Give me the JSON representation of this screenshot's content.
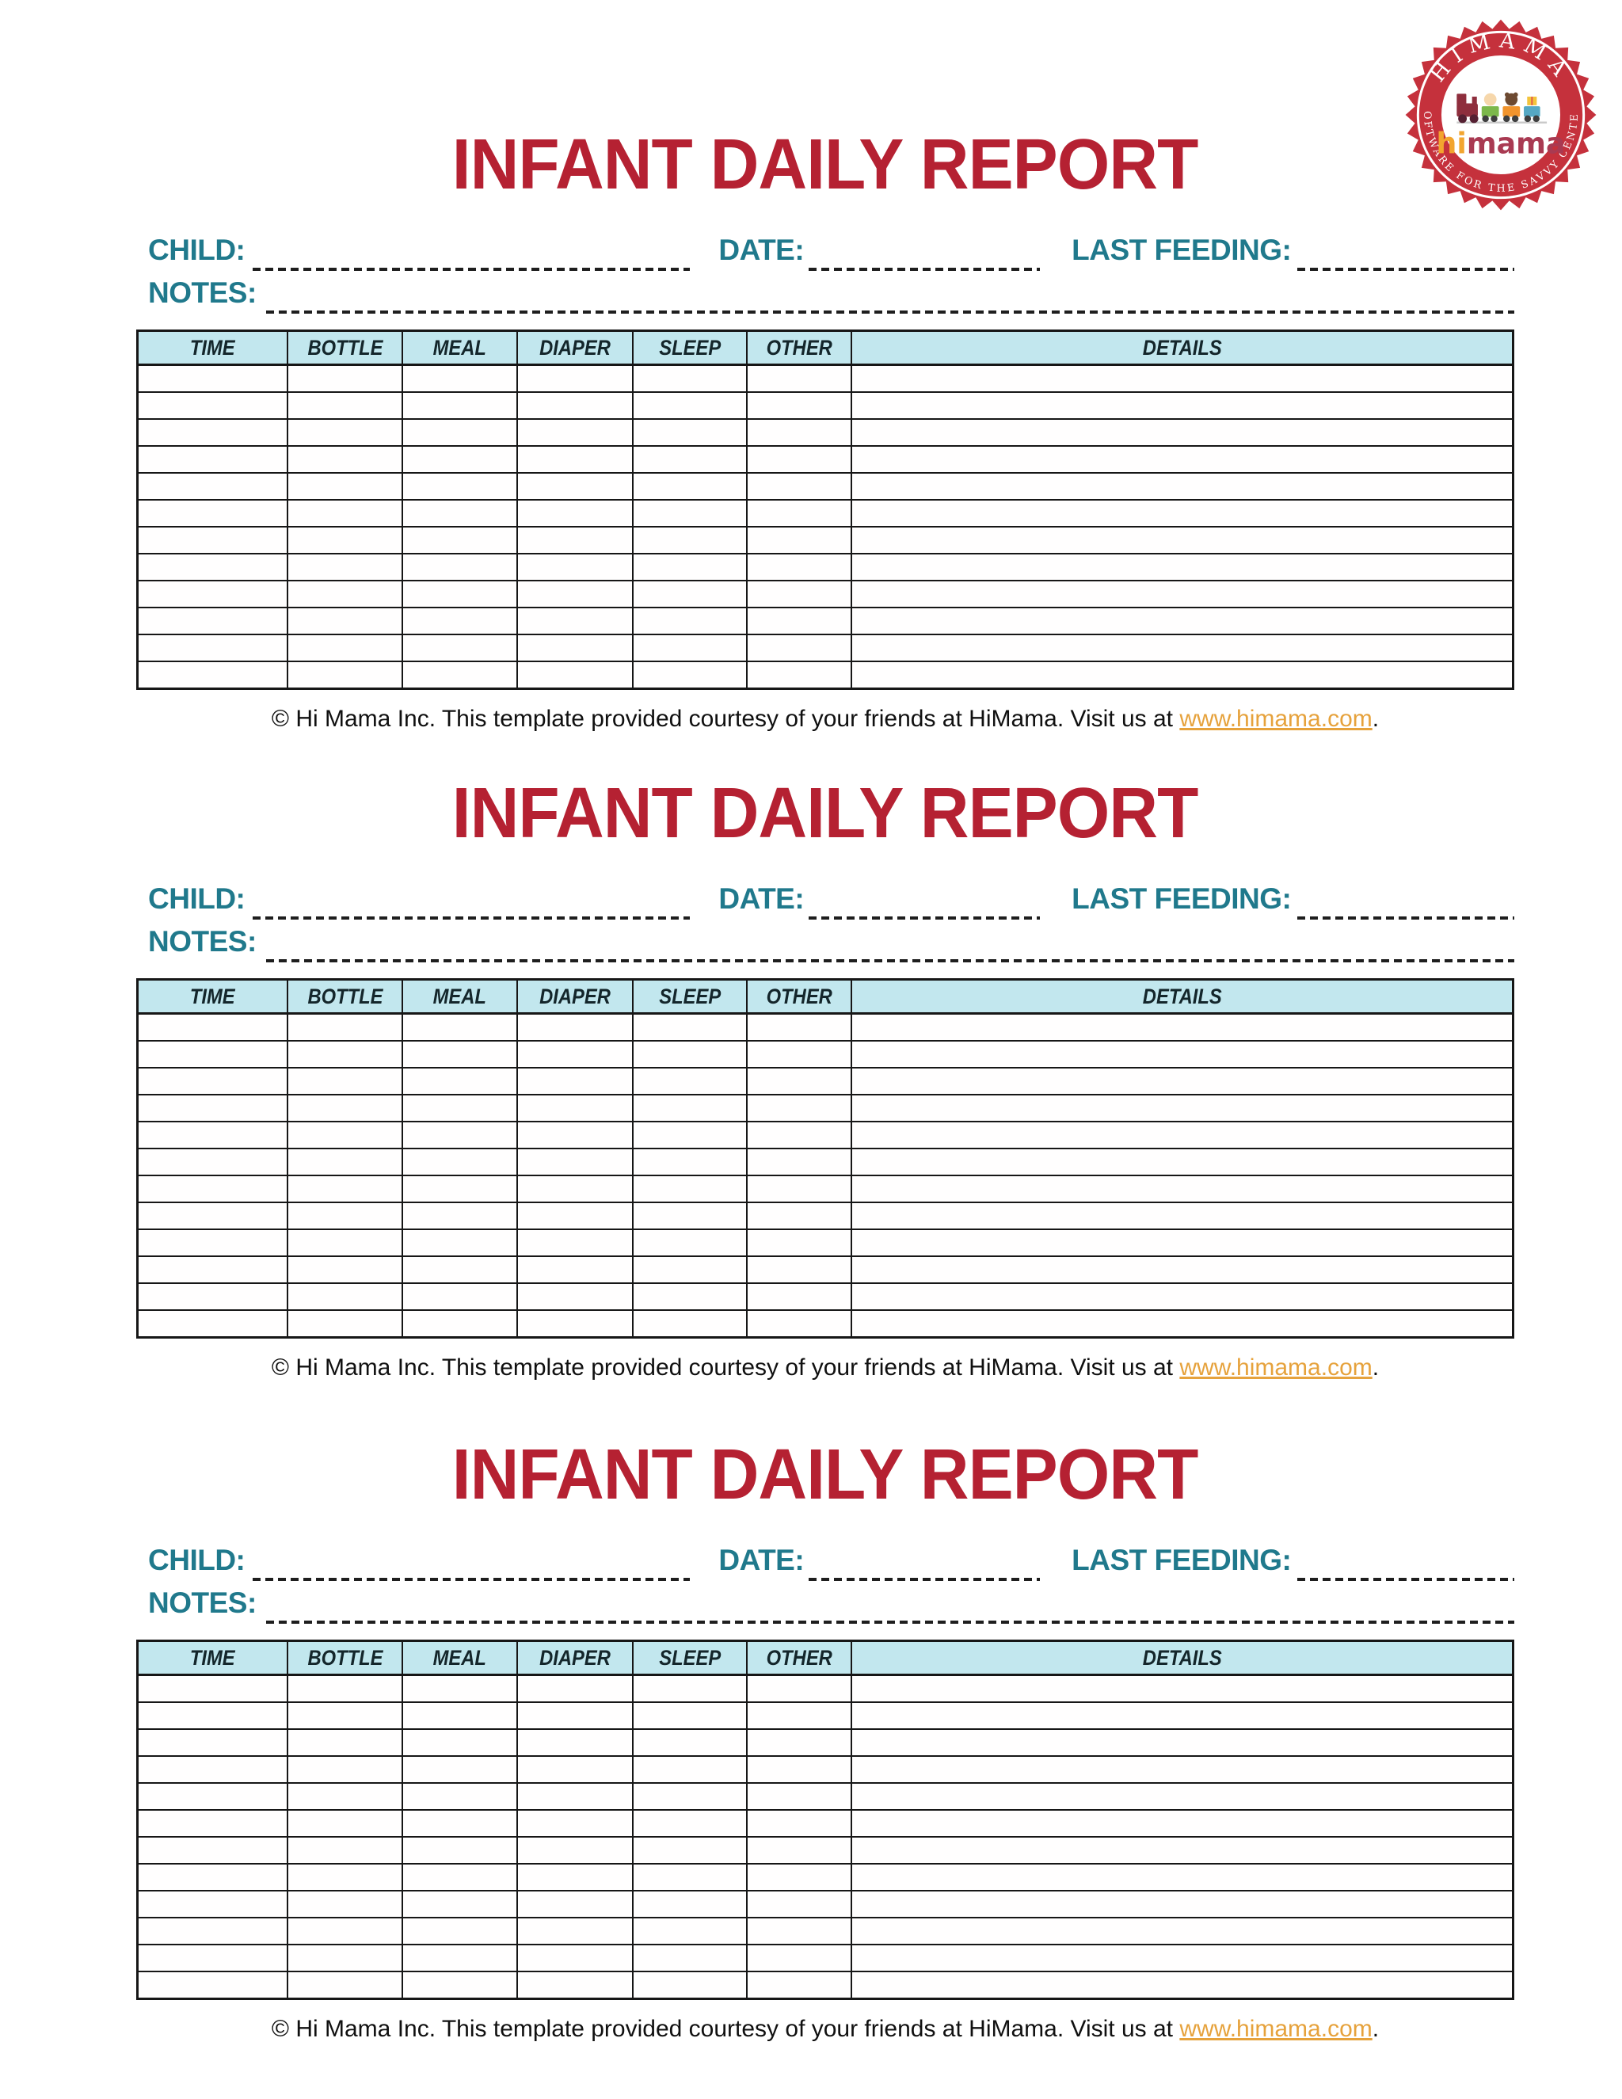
{
  "colors": {
    "title_red": "#b52132",
    "label_teal": "#20798c",
    "header_bg": "#c2e7ee",
    "link_orange": "#e6a23c",
    "badge_red": "#c5313c",
    "wordmark_hi_color": "#f2a52f",
    "wordmark_mama_color": "#a93a52"
  },
  "logo": {
    "arc_top": "HIMAMA",
    "wordmark_hi": "hi",
    "wordmark_mama": "mama",
    "arc_bottom": "SOFTWARE FOR THE SAVVY CENTER"
  },
  "sections": [
    {
      "title": "INFANT DAILY REPORT",
      "fields": {
        "child_label": "CHILD:",
        "child_value": "",
        "date_label": "DATE:",
        "date_value": "",
        "last_feeding_label": "LAST FEEDING:",
        "last_feeding_value": "",
        "notes_label": "NOTES:",
        "notes_value": ""
      },
      "table": {
        "columns": [
          "TIME",
          "BOTTLE",
          "MEAL",
          "DIAPER",
          "SLEEP",
          "OTHER",
          "DETAILS"
        ],
        "row_count": 12
      },
      "footer": {
        "prefix": "© Hi Mama Inc.  This template provided courtesy of your friends at HiMama. Visit us at ",
        "link": "www.himama.com",
        "suffix": "."
      }
    },
    {
      "title": "INFANT DAILY REPORT",
      "fields": {
        "child_label": "CHILD:",
        "child_value": "",
        "date_label": "DATE:",
        "date_value": "",
        "last_feeding_label": "LAST FEEDING:",
        "last_feeding_value": "",
        "notes_label": "NOTES:",
        "notes_value": ""
      },
      "table": {
        "columns": [
          "TIME",
          "BOTTLE",
          "MEAL",
          "DIAPER",
          "SLEEP",
          "OTHER",
          "DETAILS"
        ],
        "row_count": 12
      },
      "footer": {
        "prefix": "© Hi Mama Inc.  This template provided courtesy of your friends at HiMama. Visit us at ",
        "link": "www.himama.com",
        "suffix": "."
      }
    },
    {
      "title": "INFANT DAILY REPORT",
      "fields": {
        "child_label": "CHILD:",
        "child_value": "",
        "date_label": "DATE:",
        "date_value": "",
        "last_feeding_label": "LAST FEEDING:",
        "last_feeding_value": "",
        "notes_label": "NOTES:",
        "notes_value": ""
      },
      "table": {
        "columns": [
          "TIME",
          "BOTTLE",
          "MEAL",
          "DIAPER",
          "SLEEP",
          "OTHER",
          "DETAILS"
        ],
        "row_count": 12
      },
      "footer": {
        "prefix": "© Hi Mama Inc.  This template provided courtesy of your friends at HiMama. Visit us at ",
        "link": "www.himama.com",
        "suffix": "."
      }
    }
  ]
}
